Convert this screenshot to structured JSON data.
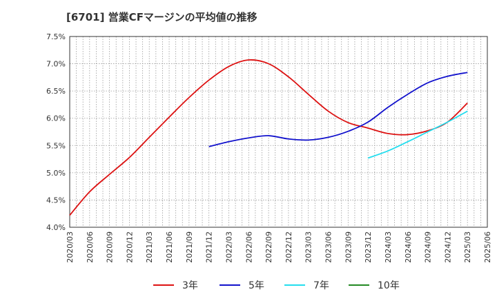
{
  "chart_data": {
    "type": "line",
    "title": "[6701]  営業CFマージンの平均値の推移",
    "xlabel": "",
    "ylabel": "",
    "grid": true,
    "legend_position": "bottom",
    "ylim": [
      4.0,
      7.5
    ],
    "xlim": [
      "2020/03",
      "2025/06"
    ],
    "yticks": [
      "4.0%",
      "4.5%",
      "5.0%",
      "5.5%",
      "6.0%",
      "6.5%",
      "7.0%",
      "7.5%"
    ],
    "xticks": [
      "2020/03",
      "2020/06",
      "2020/09",
      "2020/12",
      "2021/03",
      "2021/06",
      "2021/09",
      "2021/12",
      "2022/03",
      "2022/06",
      "2022/09",
      "2022/12",
      "2023/03",
      "2023/06",
      "2023/09",
      "2023/12",
      "2024/03",
      "2024/06",
      "2024/09",
      "2024/12",
      "2025/03",
      "2025/06"
    ],
    "series": [
      {
        "name": "3年",
        "color": "#dd1111",
        "x": [
          "2020/03",
          "2020/06",
          "2020/09",
          "2020/12",
          "2021/03",
          "2021/06",
          "2021/09",
          "2021/12",
          "2022/03",
          "2022/06",
          "2022/09",
          "2022/12",
          "2023/03",
          "2023/06",
          "2023/09",
          "2023/12",
          "2024/03",
          "2024/06",
          "2024/09",
          "2024/12",
          "2025/03"
        ],
        "values": [
          4.22,
          4.65,
          4.97,
          5.28,
          5.65,
          6.02,
          6.38,
          6.7,
          6.95,
          7.07,
          7.0,
          6.76,
          6.44,
          6.13,
          5.92,
          5.82,
          5.72,
          5.7,
          5.77,
          5.93,
          6.28
        ]
      },
      {
        "name": "5年",
        "color": "#1111cc",
        "x": [
          "2021/12",
          "2022/03",
          "2022/06",
          "2022/09",
          "2022/12",
          "2023/03",
          "2023/06",
          "2023/09",
          "2023/12",
          "2024/03",
          "2024/06",
          "2024/09",
          "2024/12",
          "2025/03"
        ],
        "values": [
          5.48,
          5.57,
          5.64,
          5.68,
          5.62,
          5.6,
          5.65,
          5.76,
          5.93,
          6.2,
          6.44,
          6.65,
          6.77,
          6.84
        ]
      },
      {
        "name": "7年",
        "color": "#22ddee",
        "x": [
          "2023/12",
          "2024/03",
          "2024/06",
          "2024/09",
          "2024/12",
          "2025/03"
        ],
        "values": [
          5.27,
          5.4,
          5.57,
          5.75,
          5.93,
          6.13
        ]
      },
      {
        "name": "10年",
        "color": "#228822",
        "x": [],
        "values": []
      }
    ]
  }
}
